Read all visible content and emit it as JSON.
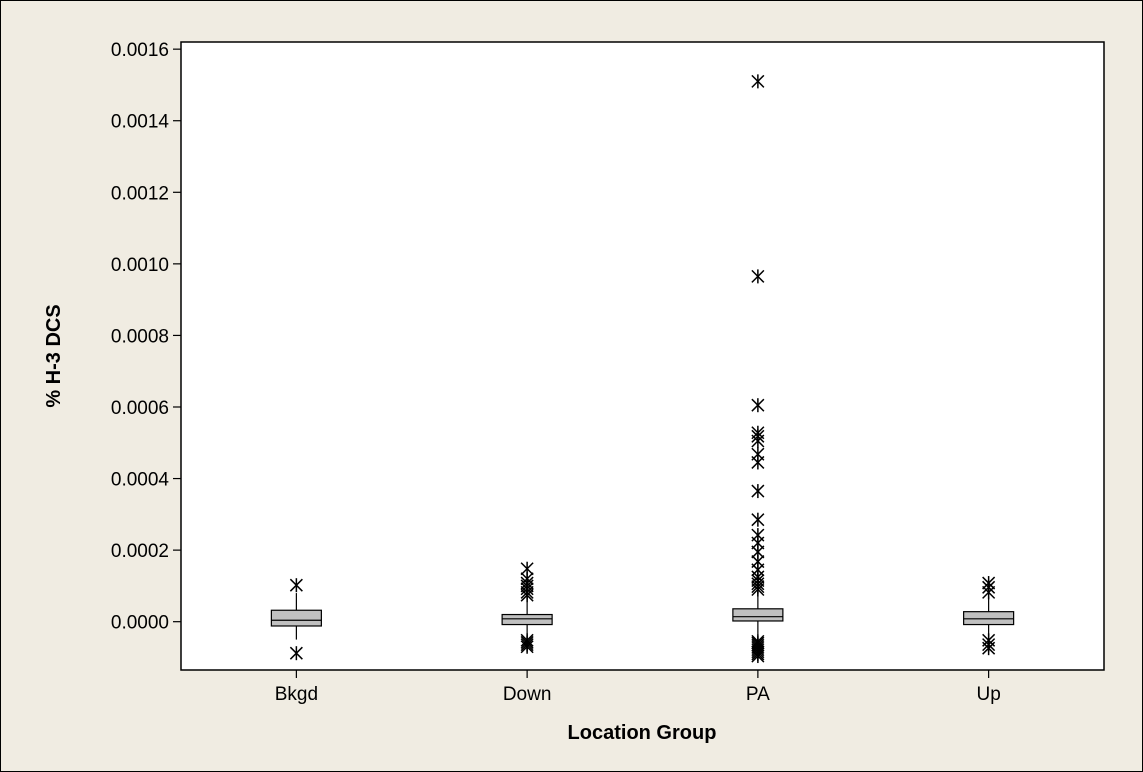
{
  "colors": {
    "page_background": "#f0ece2",
    "plot_background": "#ffffff",
    "box_fill": "#c0c0c0",
    "stroke": "#000000"
  },
  "chart_data": {
    "type": "box",
    "title": "",
    "xlabel": "Location Group",
    "ylabel": "% H-3 DCS",
    "ylim": [
      -0.000135,
      0.00162
    ],
    "yticks": [
      "0.0000",
      "0.0002",
      "0.0004",
      "0.0006",
      "0.0008",
      "0.0010",
      "0.0012",
      "0.0014",
      "0.0016"
    ],
    "ytick_values": [
      0,
      0.0002,
      0.0004,
      0.0006,
      0.0008,
      0.001,
      0.0012,
      0.0014,
      0.0016
    ],
    "outlier_marker": "asterisk",
    "grid": false,
    "categories": [
      "Bkgd",
      "Down",
      "PA",
      "Up"
    ],
    "boxes": [
      {
        "category": "Bkgd",
        "whisker_low": -5e-05,
        "q1": -1.2e-05,
        "median": 4e-06,
        "q3": 3.2e-05,
        "whisker_high": 8e-05,
        "outliers": [
          0.000102,
          -8.8e-05
        ]
      },
      {
        "category": "Down",
        "whisker_low": -4e-05,
        "q1": -8e-06,
        "median": 8e-06,
        "q3": 2e-05,
        "whisker_high": 6.2e-05,
        "outliers": [
          0.000148,
          0.00012,
          0.000108,
          0.0001,
          9.2e-05,
          8.2e-05,
          7.4e-05,
          -5.2e-05,
          -5.8e-05,
          -6.4e-05,
          -7e-05
        ]
      },
      {
        "category": "PA",
        "whisker_low": -3.8e-05,
        "q1": 2e-06,
        "median": 1.4e-05,
        "q3": 3.6e-05,
        "whisker_high": 8.2e-05,
        "outliers": [
          0.00151,
          0.000965,
          0.000605,
          0.000528,
          0.000518,
          0.000505,
          0.000468,
          0.000445,
          0.000365,
          0.000285,
          0.000242,
          0.00022,
          0.000195,
          0.000168,
          0.000145,
          0.000125,
          0.000115,
          0.000106,
          9.8e-05,
          9e-05,
          -5.5e-05,
          -6e-05,
          -6.6e-05,
          -7.2e-05,
          -7.8e-05,
          -8.4e-05,
          -9e-05,
          -9.6e-05
        ]
      },
      {
        "category": "Up",
        "whisker_low": -4.2e-05,
        "q1": -8e-06,
        "median": 8e-06,
        "q3": 2.8e-05,
        "whisker_high": 7e-05,
        "outliers": [
          0.000108,
          9.6e-05,
          8.2e-05,
          -5.2e-05,
          -6.4e-05,
          -7.4e-05
        ]
      }
    ]
  }
}
